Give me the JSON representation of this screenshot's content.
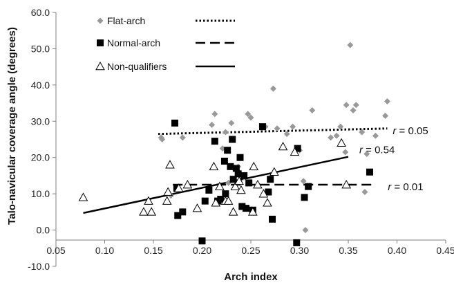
{
  "chart_data": {
    "type": "scatter",
    "title": "",
    "xlabel": "Arch index",
    "ylabel": "Talo-navicular coverage angle (degrees)",
    "xlim": [
      0.05,
      0.45
    ],
    "ylim": [
      -10,
      60
    ],
    "x_ticks": [
      "0.05",
      "0.10",
      "0.15",
      "0.20",
      "0.25",
      "0.30",
      "0.35",
      "0.40",
      "0.45"
    ],
    "y_ticks": [
      "-10.0",
      "0.0",
      "10.0",
      "20.0",
      "30.0",
      "40.0",
      "50.0",
      "60.0"
    ],
    "grid": false,
    "legend_position": "top-left",
    "series": [
      {
        "name": "Flat-arch",
        "marker": "diamond",
        "color": "#999999",
        "points": [
          [
            0.158,
            25.5
          ],
          [
            0.159,
            25
          ],
          [
            0.168,
            9.5
          ],
          [
            0.18,
            25.5
          ],
          [
            0.21,
            29
          ],
          [
            0.213,
            32
          ],
          [
            0.221,
            22.5
          ],
          [
            0.224,
            27
          ],
          [
            0.227,
            13
          ],
          [
            0.23,
            29.5
          ],
          [
            0.237,
            17.5
          ],
          [
            0.243,
            14.5
          ],
          [
            0.247,
            32
          ],
          [
            0.25,
            31
          ],
          [
            0.265,
            28.5
          ],
          [
            0.273,
            39
          ],
          [
            0.277,
            28
          ],
          [
            0.287,
            26.5
          ],
          [
            0.293,
            28.5
          ],
          [
            0.3,
            22
          ],
          [
            0.304,
            13.5
          ],
          [
            0.306,
            0
          ],
          [
            0.313,
            33
          ],
          [
            0.332,
            25.5
          ],
          [
            0.338,
            26
          ],
          [
            0.342,
            28.5
          ],
          [
            0.347,
            21.5
          ],
          [
            0.348,
            34.5
          ],
          [
            0.352,
            51
          ],
          [
            0.355,
            33
          ],
          [
            0.358,
            34.5
          ],
          [
            0.364,
            27
          ],
          [
            0.367,
            10.5
          ],
          [
            0.369,
            21
          ],
          [
            0.378,
            26
          ],
          [
            0.388,
            31.5
          ],
          [
            0.39,
            35.5
          ]
        ]
      },
      {
        "name": "Normal-arch",
        "marker": "square",
        "color": "#000000",
        "points": [
          [
            0.172,
            29.5
          ],
          [
            0.174,
            11.5
          ],
          [
            0.175,
            4
          ],
          [
            0.18,
            5
          ],
          [
            0.2,
            -3
          ],
          [
            0.203,
            8
          ],
          [
            0.207,
            11
          ],
          [
            0.213,
            24.5
          ],
          [
            0.216,
            8
          ],
          [
            0.219,
            8.5
          ],
          [
            0.223,
            19
          ],
          [
            0.224,
            10
          ],
          [
            0.226,
            22
          ],
          [
            0.229,
            17.5
          ],
          [
            0.231,
            25
          ],
          [
            0.232,
            14
          ],
          [
            0.235,
            17
          ],
          [
            0.237,
            15.5
          ],
          [
            0.239,
            20
          ],
          [
            0.241,
            6.5
          ],
          [
            0.243,
            15
          ],
          [
            0.245,
            6
          ],
          [
            0.248,
            13
          ],
          [
            0.252,
            5.5
          ],
          [
            0.262,
            28.5
          ],
          [
            0.268,
            10.5
          ],
          [
            0.27,
            14
          ],
          [
            0.272,
            3
          ],
          [
            0.297,
            -3.5
          ],
          [
            0.298,
            22.5
          ],
          [
            0.305,
            9
          ],
          [
            0.309,
            12
          ],
          [
            0.372,
            16
          ]
        ]
      },
      {
        "name": "Non-qualifiers",
        "marker": "triangle",
        "color": "#000000",
        "points": [
          [
            0.078,
            9
          ],
          [
            0.14,
            5
          ],
          [
            0.145,
            8
          ],
          [
            0.148,
            5
          ],
          [
            0.164,
            8
          ],
          [
            0.165,
            10.5
          ],
          [
            0.167,
            18
          ],
          [
            0.176,
            11.5
          ],
          [
            0.185,
            12.5
          ],
          [
            0.195,
            6
          ],
          [
            0.212,
            17.5
          ],
          [
            0.214,
            7.5
          ],
          [
            0.218,
            12
          ],
          [
            0.224,
            8
          ],
          [
            0.227,
            8
          ],
          [
            0.232,
            5
          ],
          [
            0.234,
            12
          ],
          [
            0.238,
            13.5
          ],
          [
            0.24,
            11
          ],
          [
            0.252,
            5
          ],
          [
            0.253,
            17.5
          ],
          [
            0.257,
            12.5
          ],
          [
            0.263,
            10
          ],
          [
            0.267,
            7.5
          ],
          [
            0.274,
            16
          ],
          [
            0.283,
            23
          ],
          [
            0.295,
            21.5
          ],
          [
            0.343,
            24
          ],
          [
            0.348,
            12.5
          ]
        ]
      }
    ],
    "trendlines": [
      {
        "series": "Flat-arch",
        "style": "dotted",
        "x": [
          0.155,
          0.39
        ],
        "y": [
          26.5,
          28
        ],
        "label": "r = 0.05"
      },
      {
        "series": "Normal-arch",
        "style": "dashed",
        "x": [
          0.17,
          0.375
        ],
        "y": [
          12.5,
          12.5
        ],
        "label": "r = 0.01"
      },
      {
        "series": "Non-qualifiers",
        "style": "solid",
        "x": [
          0.078,
          0.35
        ],
        "y": [
          4.7,
          20.2
        ],
        "label": "r = 0.54"
      }
    ]
  }
}
